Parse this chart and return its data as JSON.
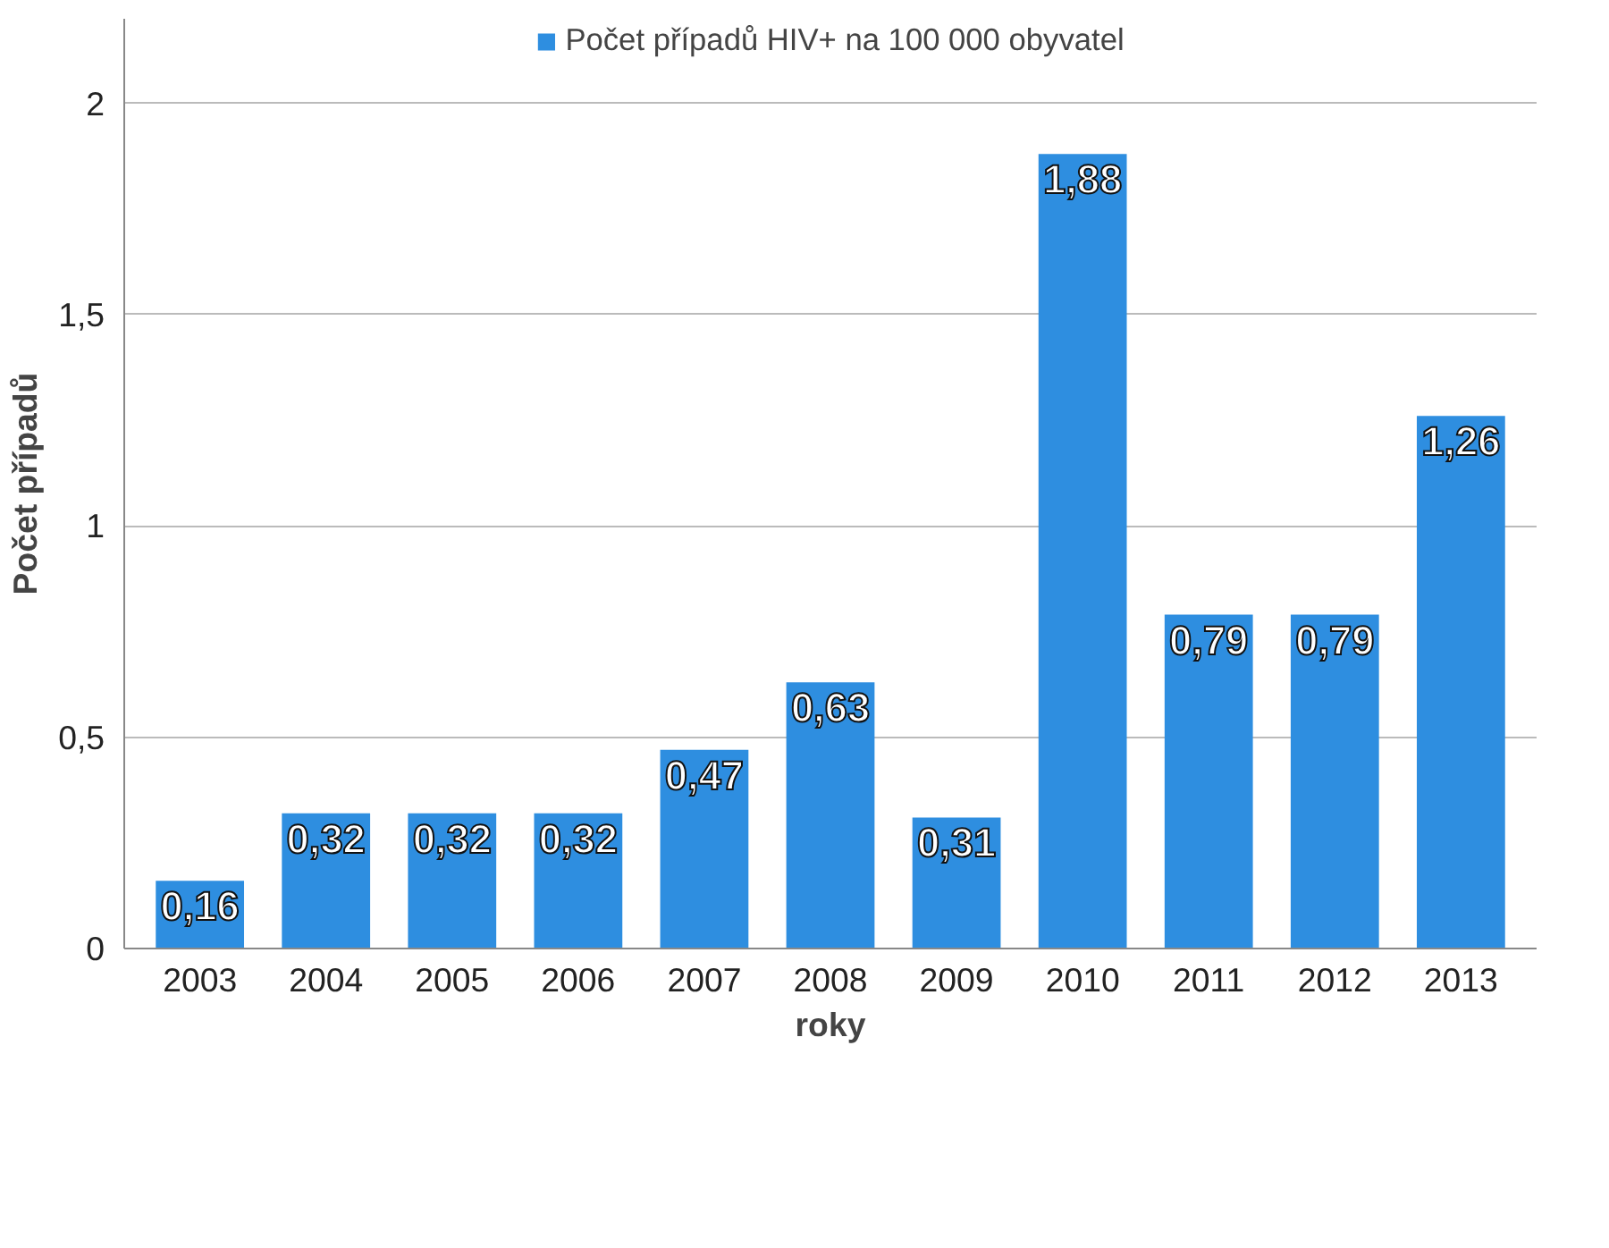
{
  "chart_data": {
    "type": "bar",
    "xlabel": "roky",
    "ylabel": "Počet případů",
    "categories": [
      "2003",
      "2004",
      "2005",
      "2006",
      "2007",
      "2008",
      "2009",
      "2010",
      "2011",
      "2012",
      "2013"
    ],
    "series": [
      {
        "name": "Počet případů HIV+ na 100 000 obyvatel",
        "color": "#2e8ee0",
        "values": [
          0.16,
          0.32,
          0.32,
          0.32,
          0.47,
          0.63,
          0.31,
          1.88,
          0.79,
          0.79,
          1.26
        ],
        "value_labels": [
          "0,16",
          "0,32",
          "0,32",
          "0,32",
          "0,47",
          "0,63",
          "0,31",
          "1,88",
          "0,79",
          "0,79",
          "1,26"
        ]
      }
    ],
    "ylim": [
      0,
      2.2
    ],
    "yticks": [
      0,
      {
        "value": 0.5,
        "label": "0,5"
      },
      1,
      {
        "value": 1.5,
        "label": "1,5"
      },
      2
    ],
    "grid": "y",
    "legend": "top"
  }
}
